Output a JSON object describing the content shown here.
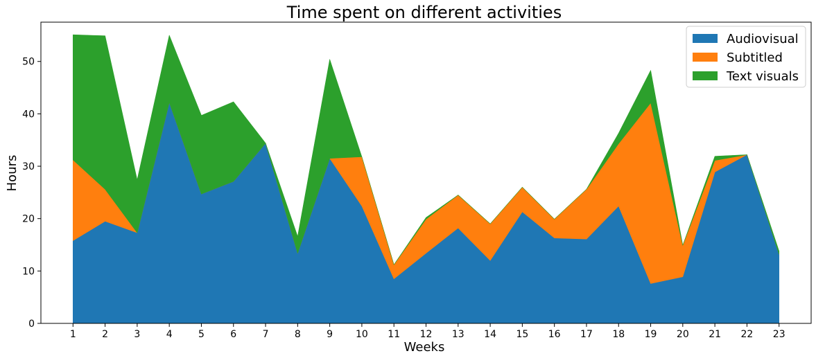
{
  "chart_data": {
    "type": "area",
    "stacked": true,
    "title": "Time spent on different activities",
    "xlabel": "Weeks",
    "ylabel": "Hours",
    "x": [
      1,
      2,
      3,
      4,
      5,
      6,
      7,
      8,
      9,
      10,
      11,
      12,
      13,
      14,
      15,
      16,
      17,
      18,
      19,
      20,
      21,
      22,
      23
    ],
    "xlim": [
      0.0,
      24.0
    ],
    "ylim": [
      0,
      57.5
    ],
    "yticks": [
      0,
      10,
      20,
      30,
      40,
      50
    ],
    "grid": false,
    "legend_position": "top-right",
    "series": [
      {
        "name": "Audiovisual",
        "color": "#1f77b4",
        "values": [
          15.8,
          19.5,
          17.3,
          42.2,
          24.7,
          27.1,
          34.4,
          13.4,
          31.5,
          22.4,
          8.5,
          13.4,
          18.2,
          12.0,
          21.3,
          16.3,
          16.1,
          22.4,
          7.6,
          8.9,
          28.9,
          32.2,
          13.2
        ]
      },
      {
        "name": "Subtitled",
        "color": "#ff7f0e",
        "values": [
          15.4,
          6.1,
          0.0,
          0.0,
          0.0,
          0.0,
          0.0,
          0.0,
          0.0,
          9.4,
          2.7,
          6.5,
          6.3,
          7.0,
          4.7,
          3.6,
          9.5,
          11.9,
          34.5,
          6.0,
          2.2,
          0.0,
          0.0
        ]
      },
      {
        "name": "Text visuals",
        "color": "#2ca02c",
        "values": [
          23.9,
          29.3,
          10.1,
          12.8,
          15.0,
          15.2,
          0.0,
          3.2,
          18.9,
          0.0,
          0.0,
          0.3,
          0.0,
          0.0,
          0.0,
          0.0,
          0.0,
          2.0,
          6.2,
          0.0,
          0.8,
          0.0,
          0.6
        ]
      }
    ]
  }
}
